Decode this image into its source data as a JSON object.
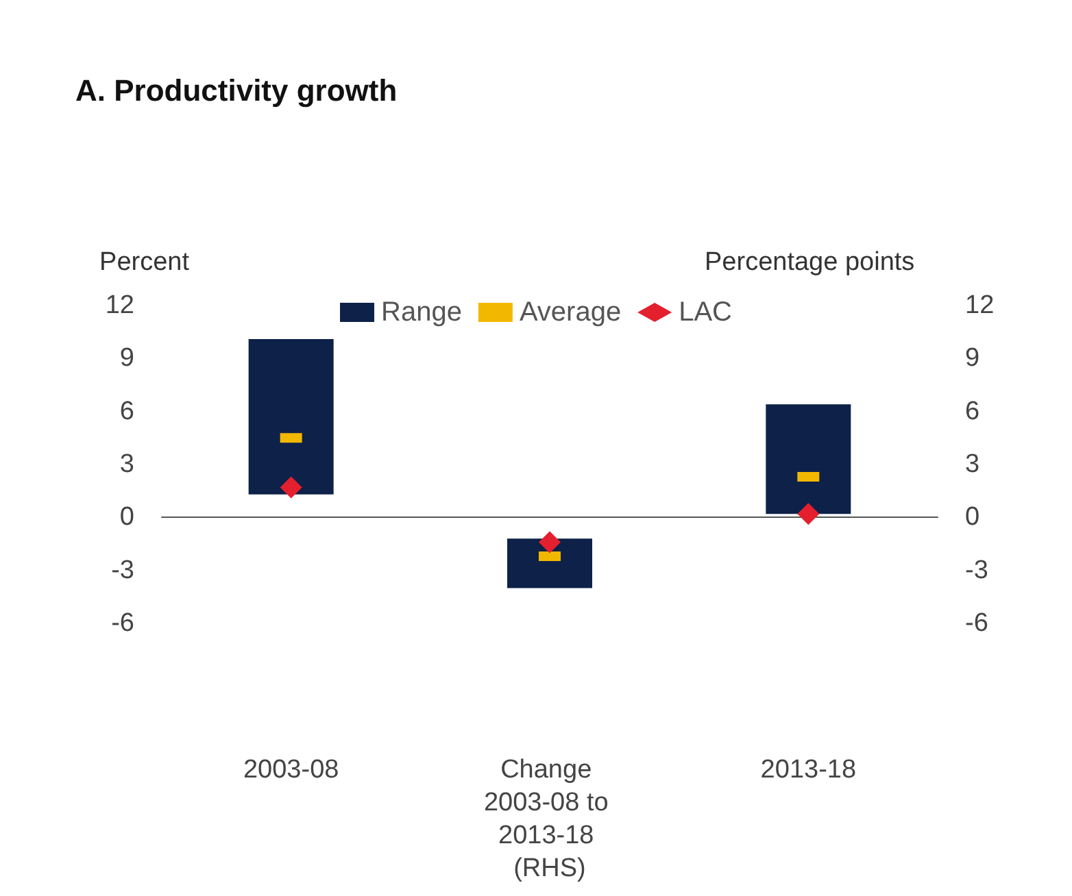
{
  "chart_data": {
    "type": "bar",
    "title": "A. Productivity growth",
    "ylabel": "Percent",
    "y2label": "Percentage points",
    "categories": [
      "2003-08",
      "Change 2003-08 to 2013-18 (RHS)",
      "2013-18"
    ],
    "series": [
      {
        "name": "Range",
        "color": "#0d2149",
        "base": [
          1.3,
          -4.0,
          0.2
        ],
        "values": [
          8.8,
          2.8,
          6.2
        ]
      },
      {
        "name": "Average",
        "type": "scatter",
        "color": "#f2b800",
        "values": [
          4.5,
          -2.2,
          2.3
        ]
      },
      {
        "name": "LAC",
        "type": "scatter",
        "color": "#e5202e",
        "marker": "diamond",
        "values": [
          1.7,
          -1.4,
          0.2
        ]
      }
    ],
    "ylim": [
      -6,
      12
    ],
    "yticks": [
      -6,
      -3,
      0,
      3,
      6,
      9,
      12
    ],
    "y2lim": [
      -6,
      12
    ],
    "y2ticks": [
      -6,
      -3,
      0,
      3,
      6,
      9,
      12
    ],
    "legend": "top"
  }
}
